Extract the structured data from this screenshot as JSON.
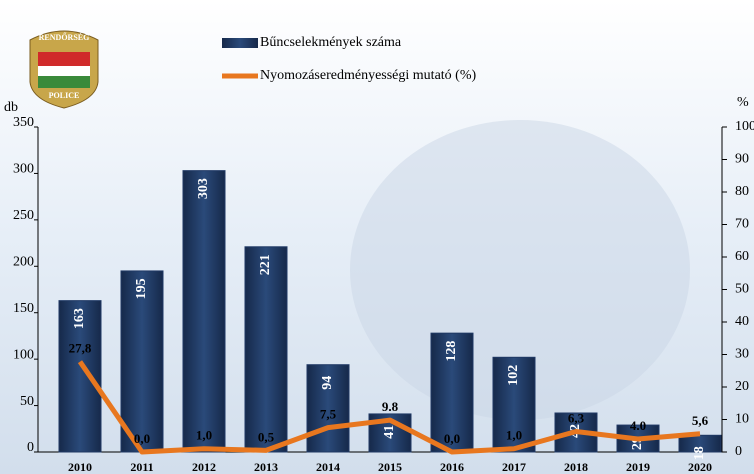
{
  "chart_data": {
    "type": "bar-line",
    "categories": [
      "2010",
      "2011",
      "2012",
      "2013",
      "2014",
      "2015",
      "2016",
      "2017",
      "2018",
      "2019",
      "2020"
    ],
    "series": [
      {
        "name": "Bűncselekmények száma",
        "type": "bar",
        "color": "#1f3864",
        "values": [
          163,
          195,
          303,
          221,
          94,
          41,
          128,
          102,
          42,
          29,
          18
        ]
      },
      {
        "name": "Nyomozáseredményességi mutató (%)",
        "type": "line",
        "color": "#e8771f",
        "axis": "y2",
        "values": [
          27.8,
          0.0,
          1.0,
          0.5,
          7.5,
          9.8,
          0.0,
          1.0,
          6.3,
          4.0,
          5.6
        ],
        "value_labels": [
          "27,8",
          "0,0",
          "1,0",
          "0,5",
          "7,5",
          "9.8",
          "0,0",
          "1,0",
          "6,3",
          "4.0",
          "5,6"
        ]
      }
    ],
    "ylabel": "db",
    "y2label": "%",
    "ylim": [
      0,
      350
    ],
    "yticks": [
      0,
      50,
      100,
      150,
      200,
      250,
      300,
      350
    ],
    "y2lim": [
      0,
      100
    ],
    "y2ticks": [
      0,
      10,
      20,
      30,
      40,
      50,
      60,
      70,
      80,
      90,
      100
    ]
  },
  "logo": {
    "top": "RENDŐRSÉG",
    "bottom": "POLICE"
  }
}
